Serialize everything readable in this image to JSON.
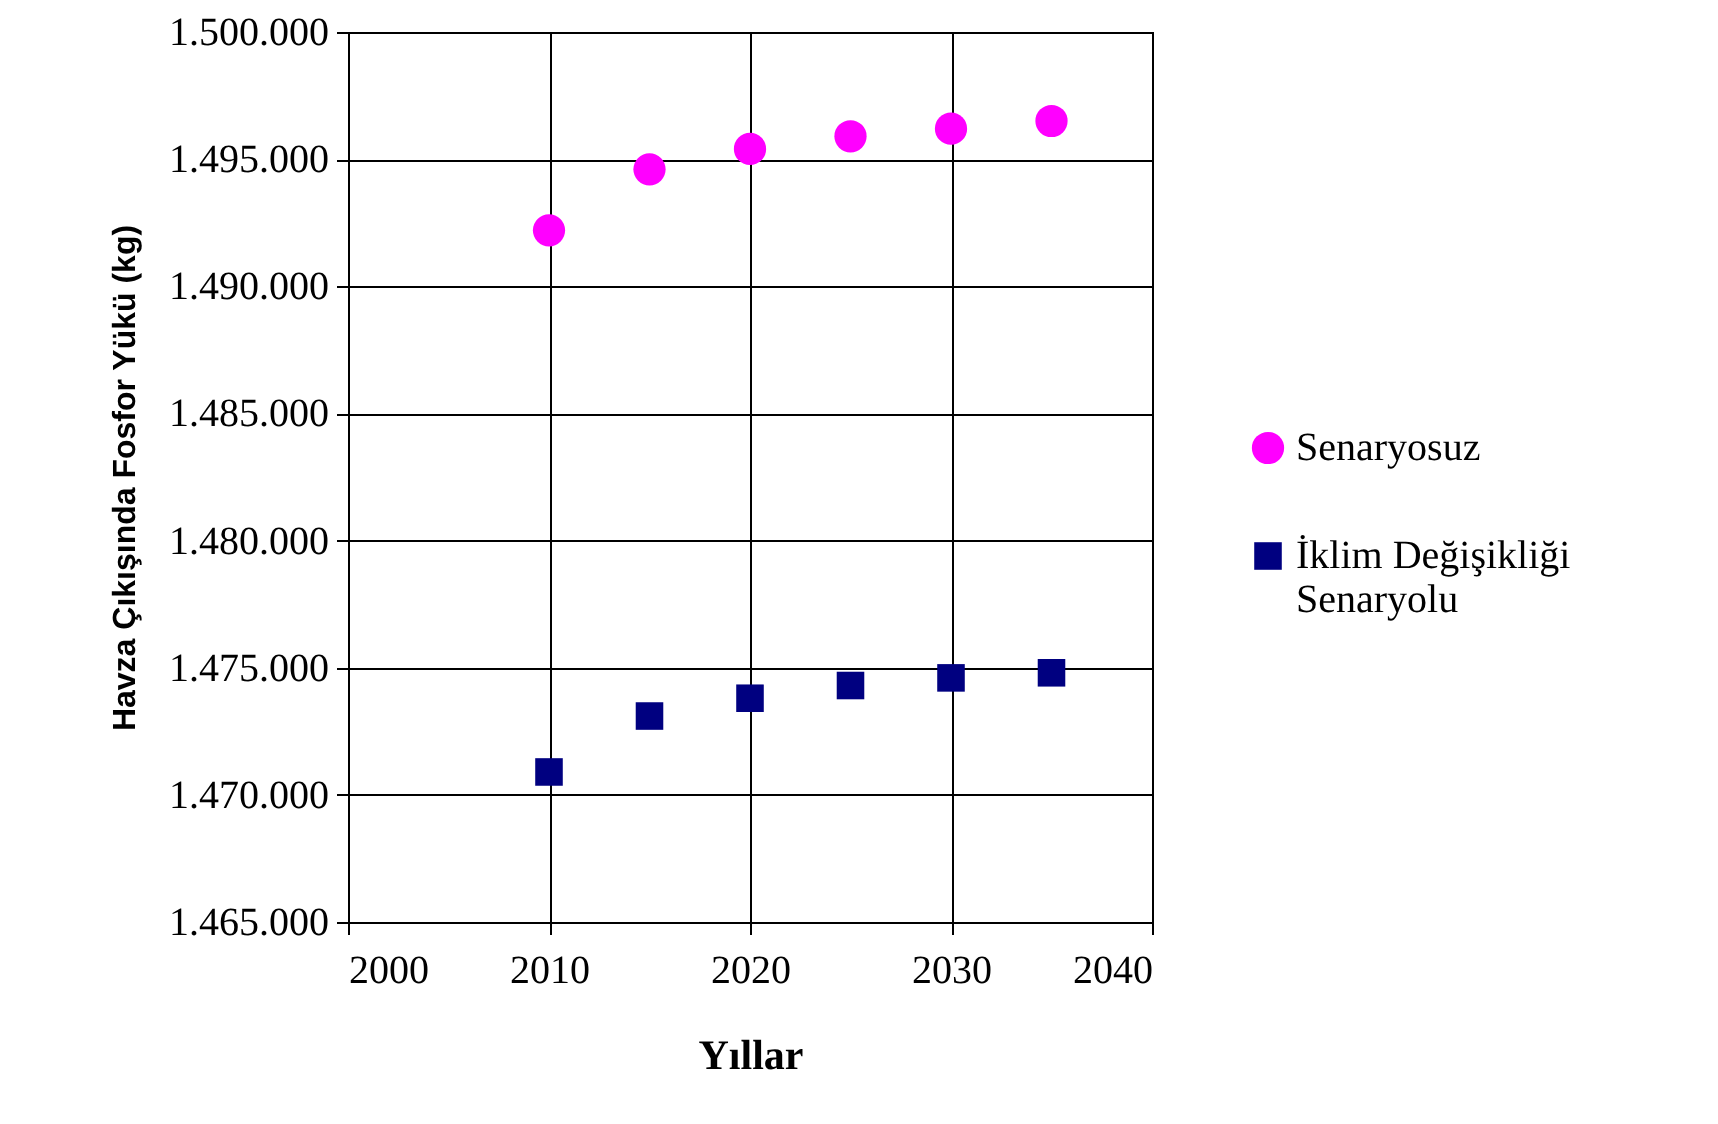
{
  "chart_data": {
    "type": "scatter",
    "xlabel": "Yıllar",
    "ylabel": "Havza Çıkışında Fosfor Yükü (kg)",
    "x": [
      2010,
      2015,
      2020,
      2025,
      2030,
      2035
    ],
    "series": [
      {
        "name": "Senaryosuz",
        "color": "#ff00ff",
        "marker": "circle",
        "values": [
          1492200,
          1494600,
          1495400,
          1495900,
          1496200,
          1496500
        ]
      },
      {
        "name": "İklim Değişikliği Senaryolu",
        "color": "#000080",
        "marker": "square",
        "values": [
          1470900,
          1473100,
          1473800,
          1474300,
          1474600,
          1474800
        ]
      }
    ],
    "xlim": [
      2000,
      2040
    ],
    "xticks": [
      2000,
      2010,
      2020,
      2030,
      2040
    ],
    "ylim": [
      1465000,
      1500000
    ],
    "yticks": [
      {
        "value": 1465000,
        "label": "1.465.000"
      },
      {
        "value": 1470000,
        "label": "1.470.000"
      },
      {
        "value": 1475000,
        "label": "1.475.000"
      },
      {
        "value": 1480000,
        "label": "1.480.000"
      },
      {
        "value": 1485000,
        "label": "1.485.000"
      },
      {
        "value": 1490000,
        "label": "1.490.000"
      },
      {
        "value": 1495000,
        "label": "1.495.000"
      },
      {
        "value": 1500000,
        "label": "1.500.000"
      }
    ],
    "grid": true,
    "legend": "right"
  }
}
